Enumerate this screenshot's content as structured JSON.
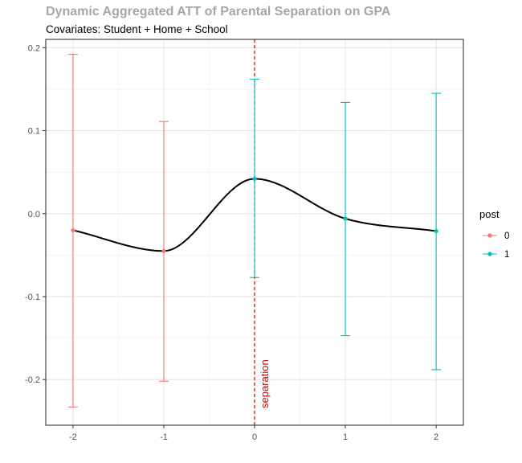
{
  "chart_data": {
    "type": "line",
    "title": "Dynamic Aggregated ATT of Parental Separation on GPA",
    "subtitle": "Covariates: Student + Home + School",
    "xlabel": "",
    "ylabel": "",
    "x_ticks": [
      "-2",
      "-1",
      "0",
      "1",
      "2"
    ],
    "y_ticks": [
      "-0.2",
      "-0.1",
      "0.0",
      "0.1",
      "0.2"
    ],
    "xlim": [
      -2.3,
      2.3
    ],
    "ylim": [
      -0.255,
      0.21
    ],
    "grid": true,
    "legend": {
      "title": "post",
      "position": "right",
      "items": [
        {
          "label": "0",
          "color": "#F8766D"
        },
        {
          "label": "1",
          "color": "#00BFC4"
        }
      ]
    },
    "points": [
      {
        "x": -2,
        "y": -0.02,
        "lower": -0.233,
        "upper": 0.192,
        "post": "0"
      },
      {
        "x": -1,
        "y": -0.045,
        "lower": -0.202,
        "upper": 0.111,
        "post": "0"
      },
      {
        "x": 0,
        "y": 0.042,
        "lower": -0.077,
        "upper": 0.162,
        "post": "1"
      },
      {
        "x": 1,
        "y": -0.006,
        "lower": -0.147,
        "upper": 0.134,
        "post": "1"
      },
      {
        "x": 2,
        "y": -0.021,
        "lower": -0.188,
        "upper": 0.145,
        "post": "1"
      }
    ],
    "smooth_line_color": "#000000",
    "vline": {
      "x": 0,
      "label": "separation",
      "color": "#CC0000"
    }
  }
}
